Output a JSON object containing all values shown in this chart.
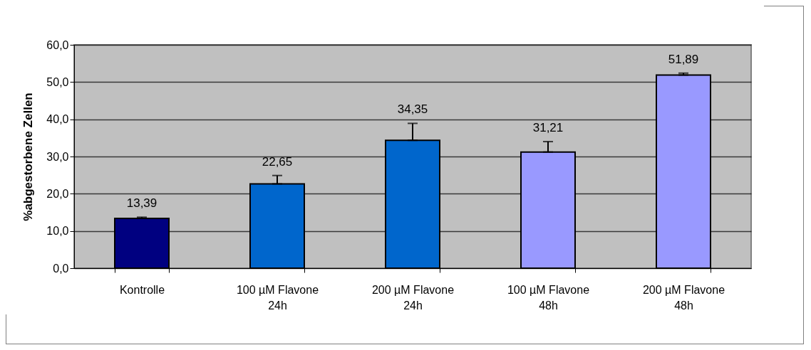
{
  "chart_data": {
    "type": "bar",
    "ylabel": "%abgestorbene Zellen",
    "categories": [
      "Kontrolle",
      "100 µM Flavone\n24h",
      "200 µM Flavone\n24h",
      "100 µM Flavone\n48h",
      "200 µM Flavone\n48h"
    ],
    "values": [
      13.39,
      22.65,
      34.35,
      31.21,
      51.89
    ],
    "colors": [
      "#000080",
      "#0066cc",
      "#0066cc",
      "#9999ff",
      "#9999ff"
    ],
    "errors": [
      [
        13.39,
        13.7
      ],
      [
        22.65,
        24.9
      ],
      [
        34.35,
        38.9
      ],
      [
        31.21,
        34.0
      ],
      [
        51.89,
        52.4
      ]
    ],
    "value_labels": [
      "13,39",
      "22,65",
      "34,35",
      "31,21",
      "51,89"
    ],
    "ylim": [
      0,
      60
    ],
    "yticks": [
      {
        "value": 0,
        "label": "0,0"
      },
      {
        "value": 10,
        "label": "10,0"
      },
      {
        "value": 20,
        "label": "20,0"
      },
      {
        "value": 30,
        "label": "30,0"
      },
      {
        "value": 40,
        "label": "40,0"
      },
      {
        "value": 50,
        "label": "50,0"
      },
      {
        "value": 60,
        "label": "60,0"
      }
    ],
    "grid": "y"
  }
}
